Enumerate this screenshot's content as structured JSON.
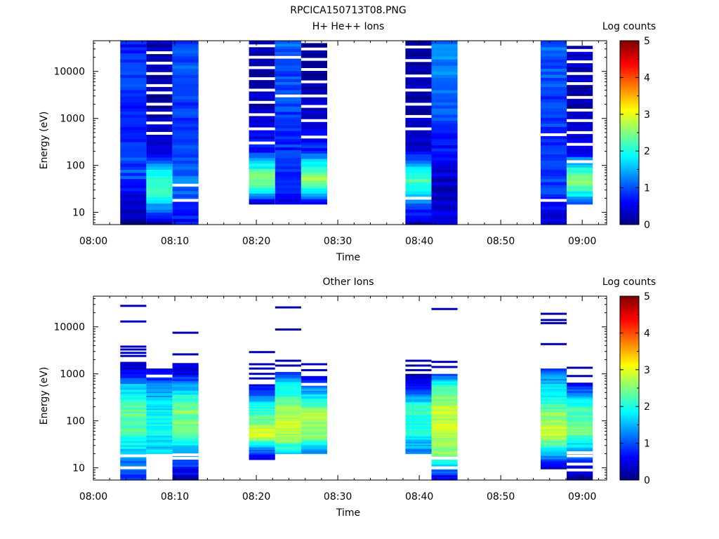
{
  "figure_title": "RPCICA150713T08.PNG",
  "chart_data": [
    {
      "type": "heatmap",
      "title": "H+ He++ Ions",
      "xlabel": "Time",
      "ylabel": "Energy (eV)",
      "colorbar_label": "Log counts",
      "yscale": "log",
      "ylim": [
        5.5,
        45000
      ],
      "xlim": [
        "08:00",
        "09:03"
      ],
      "x_tick_labels": [
        "08:00",
        "08:10",
        "08:20",
        "08:30",
        "08:40",
        "08:50",
        "09:00"
      ],
      "y_tick_labels": [
        "10",
        "100",
        "1000",
        "10000"
      ],
      "colorbar_range": [
        0,
        5
      ],
      "colorbar_ticks": [
        "0",
        "1",
        "2",
        "3",
        "4",
        "5"
      ],
      "colormap": "jet",
      "blocks": [
        {
          "t_start": "08:03.3",
          "t_end": "08:06.5",
          "e_min": 5.5,
          "e_max": 45000,
          "profile": [
            [
              6,
              0.2
            ],
            [
              20,
              0.5
            ],
            [
              60,
              1.0
            ],
            [
              200,
              0.9
            ],
            [
              1000,
              0.8
            ],
            [
              10000,
              0.9
            ],
            [
              45000,
              0.7
            ]
          ],
          "gaps": []
        },
        {
          "t_start": "08:06.5",
          "t_end": "08:09.7",
          "e_min": 5.5,
          "e_max": 45000,
          "profile": [
            [
              6,
              0.3
            ],
            [
              15,
              1.5
            ],
            [
              30,
              2.2
            ],
            [
              60,
              2.0
            ],
            [
              100,
              1.3
            ],
            [
              200,
              0.5
            ],
            [
              1000,
              0.2
            ],
            [
              45000,
              0.2
            ]
          ],
          "gaps": [
            480,
            800,
            1300,
            2000,
            3500,
            5000,
            9000,
            15000,
            25000
          ]
        },
        {
          "t_start": "08:09.7",
          "t_end": "08:12.9",
          "e_min": 5.5,
          "e_max": 45000,
          "profile": [
            [
              6,
              0.6
            ],
            [
              12,
              0.8
            ],
            [
              45,
              1.2
            ],
            [
              100,
              1.0
            ],
            [
              1000,
              0.9
            ],
            [
              10000,
              1.0
            ],
            [
              45000,
              0.9
            ]
          ],
          "gaps": [
            18,
            38
          ]
        },
        {
          "t_start": "08:19.1",
          "t_end": "08:22.3",
          "e_min": 15,
          "e_max": 45000,
          "profile": [
            [
              15,
              0.2
            ],
            [
              25,
              1.5
            ],
            [
              50,
              2.6
            ],
            [
              100,
              1.9
            ],
            [
              200,
              0.8
            ],
            [
              1000,
              0.3
            ],
            [
              45000,
              0.2
            ]
          ],
          "gaps": [
            300,
            600,
            1200,
            2200,
            4000,
            7000,
            12000,
            20000,
            35000
          ]
        },
        {
          "t_start": "08:22.3",
          "t_end": "08:25.5",
          "e_min": 15,
          "e_max": 45000,
          "profile": [
            [
              15,
              0.5
            ],
            [
              30,
              0.7
            ],
            [
              100,
              0.8
            ],
            [
              1000,
              0.9
            ],
            [
              10000,
              1.0
            ],
            [
              45000,
              1.1
            ]
          ],
          "gaps": [
            3000,
            20000
          ]
        },
        {
          "t_start": "08:25.5",
          "t_end": "08:28.7",
          "e_min": 15,
          "e_max": 40000,
          "profile": [
            [
              15,
              0.3
            ],
            [
              30,
              1.8
            ],
            [
              50,
              2.7
            ],
            [
              100,
              2.0
            ],
            [
              200,
              0.8
            ],
            [
              1000,
              0.3
            ],
            [
              40000,
              0.2
            ]
          ],
          "gaps": [
            400,
            900,
            1800,
            3000,
            6000,
            11000,
            18000,
            30000
          ]
        },
        {
          "t_start": "08:38.3",
          "t_end": "08:41.5",
          "e_min": 5.5,
          "e_max": 45000,
          "profile": [
            [
              6,
              0.2
            ],
            [
              25,
              1.6
            ],
            [
              50,
              2.2
            ],
            [
              100,
              1.5
            ],
            [
              200,
              0.4
            ],
            [
              1000,
              0.3
            ],
            [
              45000,
              0.2
            ]
          ],
          "gaps": [
            20,
            600,
            1100,
            2000,
            4000,
            8000,
            17000,
            33000
          ]
        },
        {
          "t_start": "08:41.5",
          "t_end": "08:44.7",
          "e_min": 5.5,
          "e_max": 45000,
          "profile": [
            [
              6,
              0.5
            ],
            [
              30,
              0.3
            ],
            [
              100,
              0.5
            ],
            [
              1000,
              1.0
            ],
            [
              10000,
              1.3
            ],
            [
              45000,
              1.2
            ]
          ],
          "gaps": []
        },
        {
          "t_start": "08:54.9",
          "t_end": "08:58.1",
          "e_min": 5.5,
          "e_max": 45000,
          "profile": [
            [
              6,
              0.5
            ],
            [
              15,
              0.6
            ],
            [
              30,
              1.0
            ],
            [
              100,
              0.8
            ],
            [
              1000,
              0.9
            ],
            [
              10000,
              1.0
            ],
            [
              45000,
              1.1
            ]
          ],
          "gaps": [
            18,
            450
          ]
        },
        {
          "t_start": "08:58.1",
          "t_end": "09:01.3",
          "e_min": 15,
          "e_max": 35000,
          "profile": [
            [
              15,
              1.0
            ],
            [
              25,
              1.8
            ],
            [
              50,
              2.6
            ],
            [
              100,
              1.8
            ],
            [
              200,
              0.5
            ],
            [
              1000,
              0.2
            ],
            [
              35000,
              0.3
            ]
          ],
          "gaps": [
            120,
            280,
            500,
            900,
            1500,
            2800,
            5500,
            9000,
            16000,
            28000
          ]
        }
      ]
    },
    {
      "type": "heatmap",
      "title": "Other Ions",
      "xlabel": "Time",
      "ylabel": "Energy (eV)",
      "colorbar_label": "Log counts",
      "yscale": "log",
      "ylim": [
        5.5,
        45000
      ],
      "xlim": [
        "08:00",
        "09:03"
      ],
      "x_tick_labels": [
        "08:00",
        "08:10",
        "08:20",
        "08:30",
        "08:40",
        "08:50",
        "09:00"
      ],
      "y_tick_labels": [
        "10",
        "100",
        "1000",
        "10000"
      ],
      "colorbar_range": [
        0,
        5
      ],
      "colorbar_ticks": [
        "0",
        "1",
        "2",
        "3",
        "4",
        "5"
      ],
      "colormap": "jet",
      "blocks": [
        {
          "t_start": "08:03.3",
          "t_end": "08:06.5",
          "e_min": 5.5,
          "e_max": 1800,
          "profile": [
            [
              6,
              0.8
            ],
            [
              20,
              1.5
            ],
            [
              60,
              2.3
            ],
            [
              200,
              2.4
            ],
            [
              600,
              1.5
            ],
            [
              1000,
              0.6
            ],
            [
              1800,
              0.2
            ]
          ],
          "gaps": [
            10,
            18
          ]
        },
        {
          "t_start": "08:06.5",
          "t_end": "08:09.7",
          "e_min": 20,
          "e_max": 1300,
          "profile": [
            [
              20,
              1.6
            ],
            [
              60,
              1.9
            ],
            [
              200,
              1.8
            ],
            [
              600,
              1.2
            ],
            [
              1300,
              0.3
            ]
          ],
          "gaps": [
            900
          ]
        },
        {
          "t_start": "08:09.7",
          "t_end": "08:12.9",
          "e_min": 5.5,
          "e_max": 1700,
          "profile": [
            [
              6,
              0.3
            ],
            [
              20,
              1.4
            ],
            [
              60,
              2.4
            ],
            [
              200,
              2.5
            ],
            [
              600,
              1.4
            ],
            [
              1000,
              0.5
            ],
            [
              1700,
              0.3
            ]
          ],
          "gaps": [
            16,
            19
          ]
        },
        {
          "t_start": "08:19.1",
          "t_end": "08:22.3",
          "e_min": 15,
          "e_max": 600,
          "profile": [
            [
              15,
              0.2
            ],
            [
              25,
              1.3
            ],
            [
              50,
              3.0
            ],
            [
              100,
              2.5
            ],
            [
              200,
              2.0
            ],
            [
              400,
              1.0
            ],
            [
              600,
              0.5
            ]
          ],
          "gaps": []
        },
        {
          "t_start": "08:22.3",
          "t_end": "08:25.5",
          "e_min": 20,
          "e_max": 1100,
          "profile": [
            [
              20,
              1.5
            ],
            [
              40,
              2.6
            ],
            [
              100,
              2.9
            ],
            [
              300,
              2.3
            ],
            [
              700,
              1.6
            ],
            [
              1100,
              0.8
            ]
          ],
          "gaps": []
        },
        {
          "t_start": "08:25.5",
          "t_end": "08:28.7",
          "e_min": 20,
          "e_max": 900,
          "profile": [
            [
              20,
              1.3
            ],
            [
              50,
              2.6
            ],
            [
              150,
              2.7
            ],
            [
              400,
              1.6
            ],
            [
              900,
              0.6
            ]
          ],
          "gaps": [
            600
          ]
        },
        {
          "t_start": "08:38.3",
          "t_end": "08:41.5",
          "e_min": 20,
          "e_max": 1000,
          "profile": [
            [
              20,
              1.2
            ],
            [
              60,
              2.0
            ],
            [
              200,
              2.1
            ],
            [
              500,
              0.8
            ],
            [
              1000,
              0.2
            ]
          ],
          "gaps": []
        },
        {
          "t_start": "08:41.5",
          "t_end": "08:44.7",
          "e_min": 5.5,
          "e_max": 1000,
          "profile": [
            [
              6,
              0.5
            ],
            [
              20,
              2.5
            ],
            [
              60,
              2.8
            ],
            [
              200,
              2.8
            ],
            [
              500,
              2.2
            ],
            [
              1000,
              1.0
            ]
          ],
          "gaps": [
            10,
            16
          ]
        },
        {
          "t_start": "08:54.9",
          "t_end": "08:58.1",
          "e_min": 9.5,
          "e_max": 1300,
          "profile": [
            [
              10,
              0.3
            ],
            [
              20,
              1.5
            ],
            [
              50,
              2.9
            ],
            [
              150,
              2.5
            ],
            [
              400,
              1.8
            ],
            [
              900,
              1.3
            ],
            [
              1300,
              0.6
            ]
          ],
          "gaps": []
        },
        {
          "t_start": "08:58.1",
          "t_end": "09:01.3",
          "e_min": 5.5,
          "e_max": 650,
          "profile": [
            [
              6,
              0.1
            ],
            [
              15,
              0.9
            ],
            [
              25,
              1.5
            ],
            [
              60,
              2.5
            ],
            [
              200,
              2.2
            ],
            [
              400,
              1.2
            ],
            [
              650,
              0.6
            ]
          ],
          "gaps": [
            9,
            12,
            18,
            21
          ]
        }
      ],
      "lines": [
        {
          "t_start": "08:03.3",
          "t_end": "08:06.5",
          "energies": [
            28000,
            13000,
            3800,
            3300,
            2800,
            2400
          ],
          "value": 0.3
        },
        {
          "t_start": "08:09.7",
          "t_end": "08:12.9",
          "energies": [
            7500,
            2600
          ],
          "value": 0.2
        },
        {
          "t_start": "08:19.1",
          "t_end": "08:22.3",
          "energies": [
            2900,
            1600,
            1300,
            1000,
            800
          ],
          "value": 0.3
        },
        {
          "t_start": "08:22.3",
          "t_end": "08:25.5",
          "energies": [
            26000,
            8800,
            1900,
            1500
          ],
          "value": 0.2
        },
        {
          "t_start": "08:25.5",
          "t_end": "08:28.7",
          "energies": [
            1600,
            1200
          ],
          "value": 0.3
        },
        {
          "t_start": "08:38.3",
          "t_end": "08:41.5",
          "energies": [
            1900,
            1500,
            1200
          ],
          "value": 0.2
        },
        {
          "t_start": "08:41.5",
          "t_end": "08:44.7",
          "energies": [
            24000,
            1800,
            1400
          ],
          "value": 0.3
        },
        {
          "t_start": "08:54.9",
          "t_end": "08:58.1",
          "energies": [
            19000,
            14000,
            12000,
            4300
          ],
          "value": 0.2
        },
        {
          "t_start": "08:58.1",
          "t_end": "09:01.3",
          "energies": [
            1350,
            900
          ],
          "value": 0.2
        }
      ]
    }
  ]
}
